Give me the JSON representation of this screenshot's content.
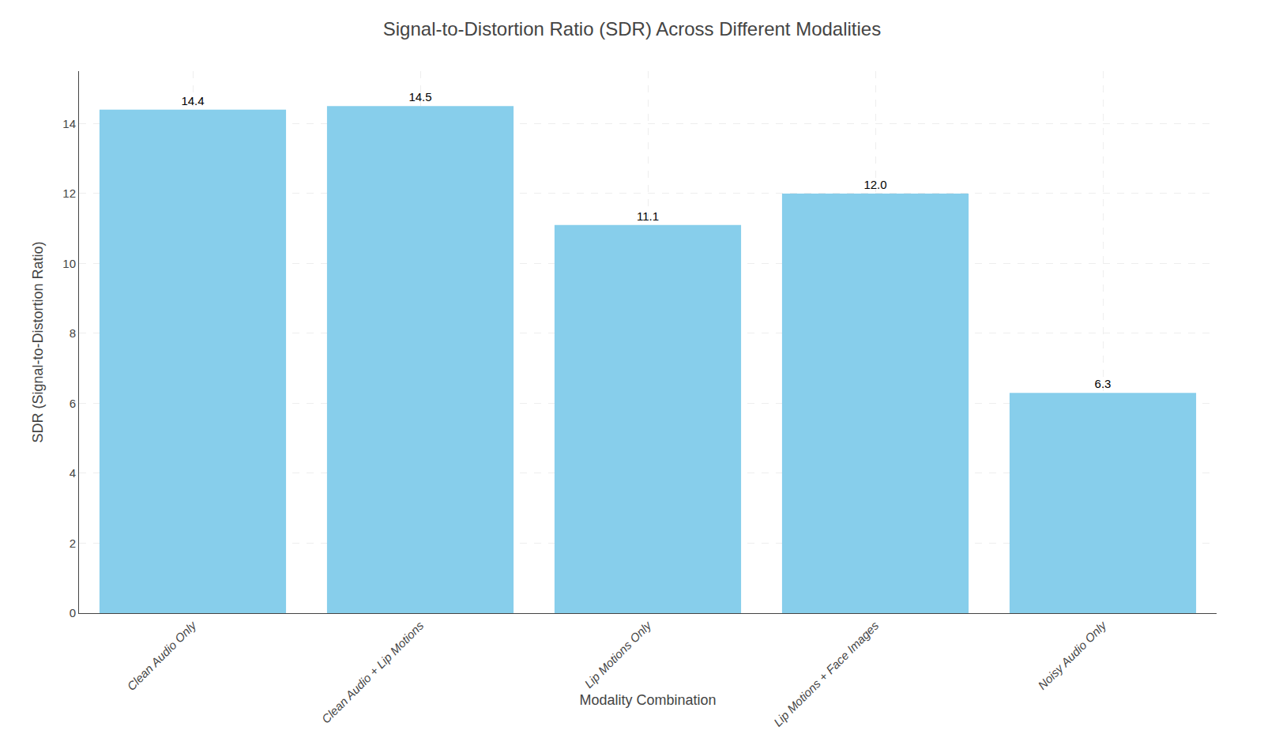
{
  "chart_data": {
    "type": "bar",
    "title": "Signal-to-Distortion Ratio (SDR) Across Different Modalities",
    "xlabel": "Modality Combination",
    "ylabel": "SDR (Signal-to-Distortion Ratio)",
    "categories": [
      "Clean Audio Only",
      "Clean Audio + Lip Motions",
      "Lip Motions Only",
      "Lip Motions + Face Images",
      "Noisy Audio Only"
    ],
    "values": [
      14.4,
      14.5,
      11.1,
      12.0,
      6.3
    ],
    "value_labels": [
      "14.4",
      "14.5",
      "11.1",
      "12.0",
      "6.3"
    ],
    "data_labels": true,
    "color": "#87CEEB",
    "ylim": [
      0,
      15.5
    ],
    "yticks": [
      0,
      2,
      4,
      6,
      8,
      10,
      12,
      14
    ],
    "grid": true
  }
}
